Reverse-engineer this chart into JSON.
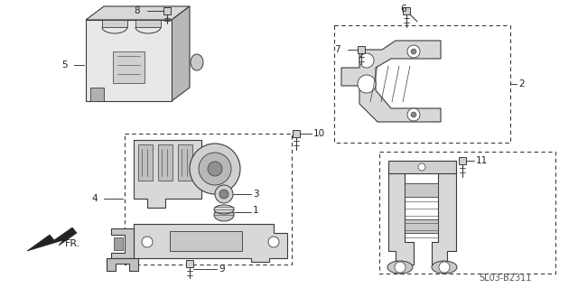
{
  "bg_color": "#ffffff",
  "line_color": "#3a3a3a",
  "gray_fill": "#c8c8c8",
  "light_gray": "#e0e0e0",
  "dark_gray": "#909090",
  "fig_width": 6.4,
  "fig_height": 3.19,
  "dpi": 100,
  "diagram_ref": "SL03-B2311",
  "label_color": "#222222",
  "label_fontsize": 7.5
}
